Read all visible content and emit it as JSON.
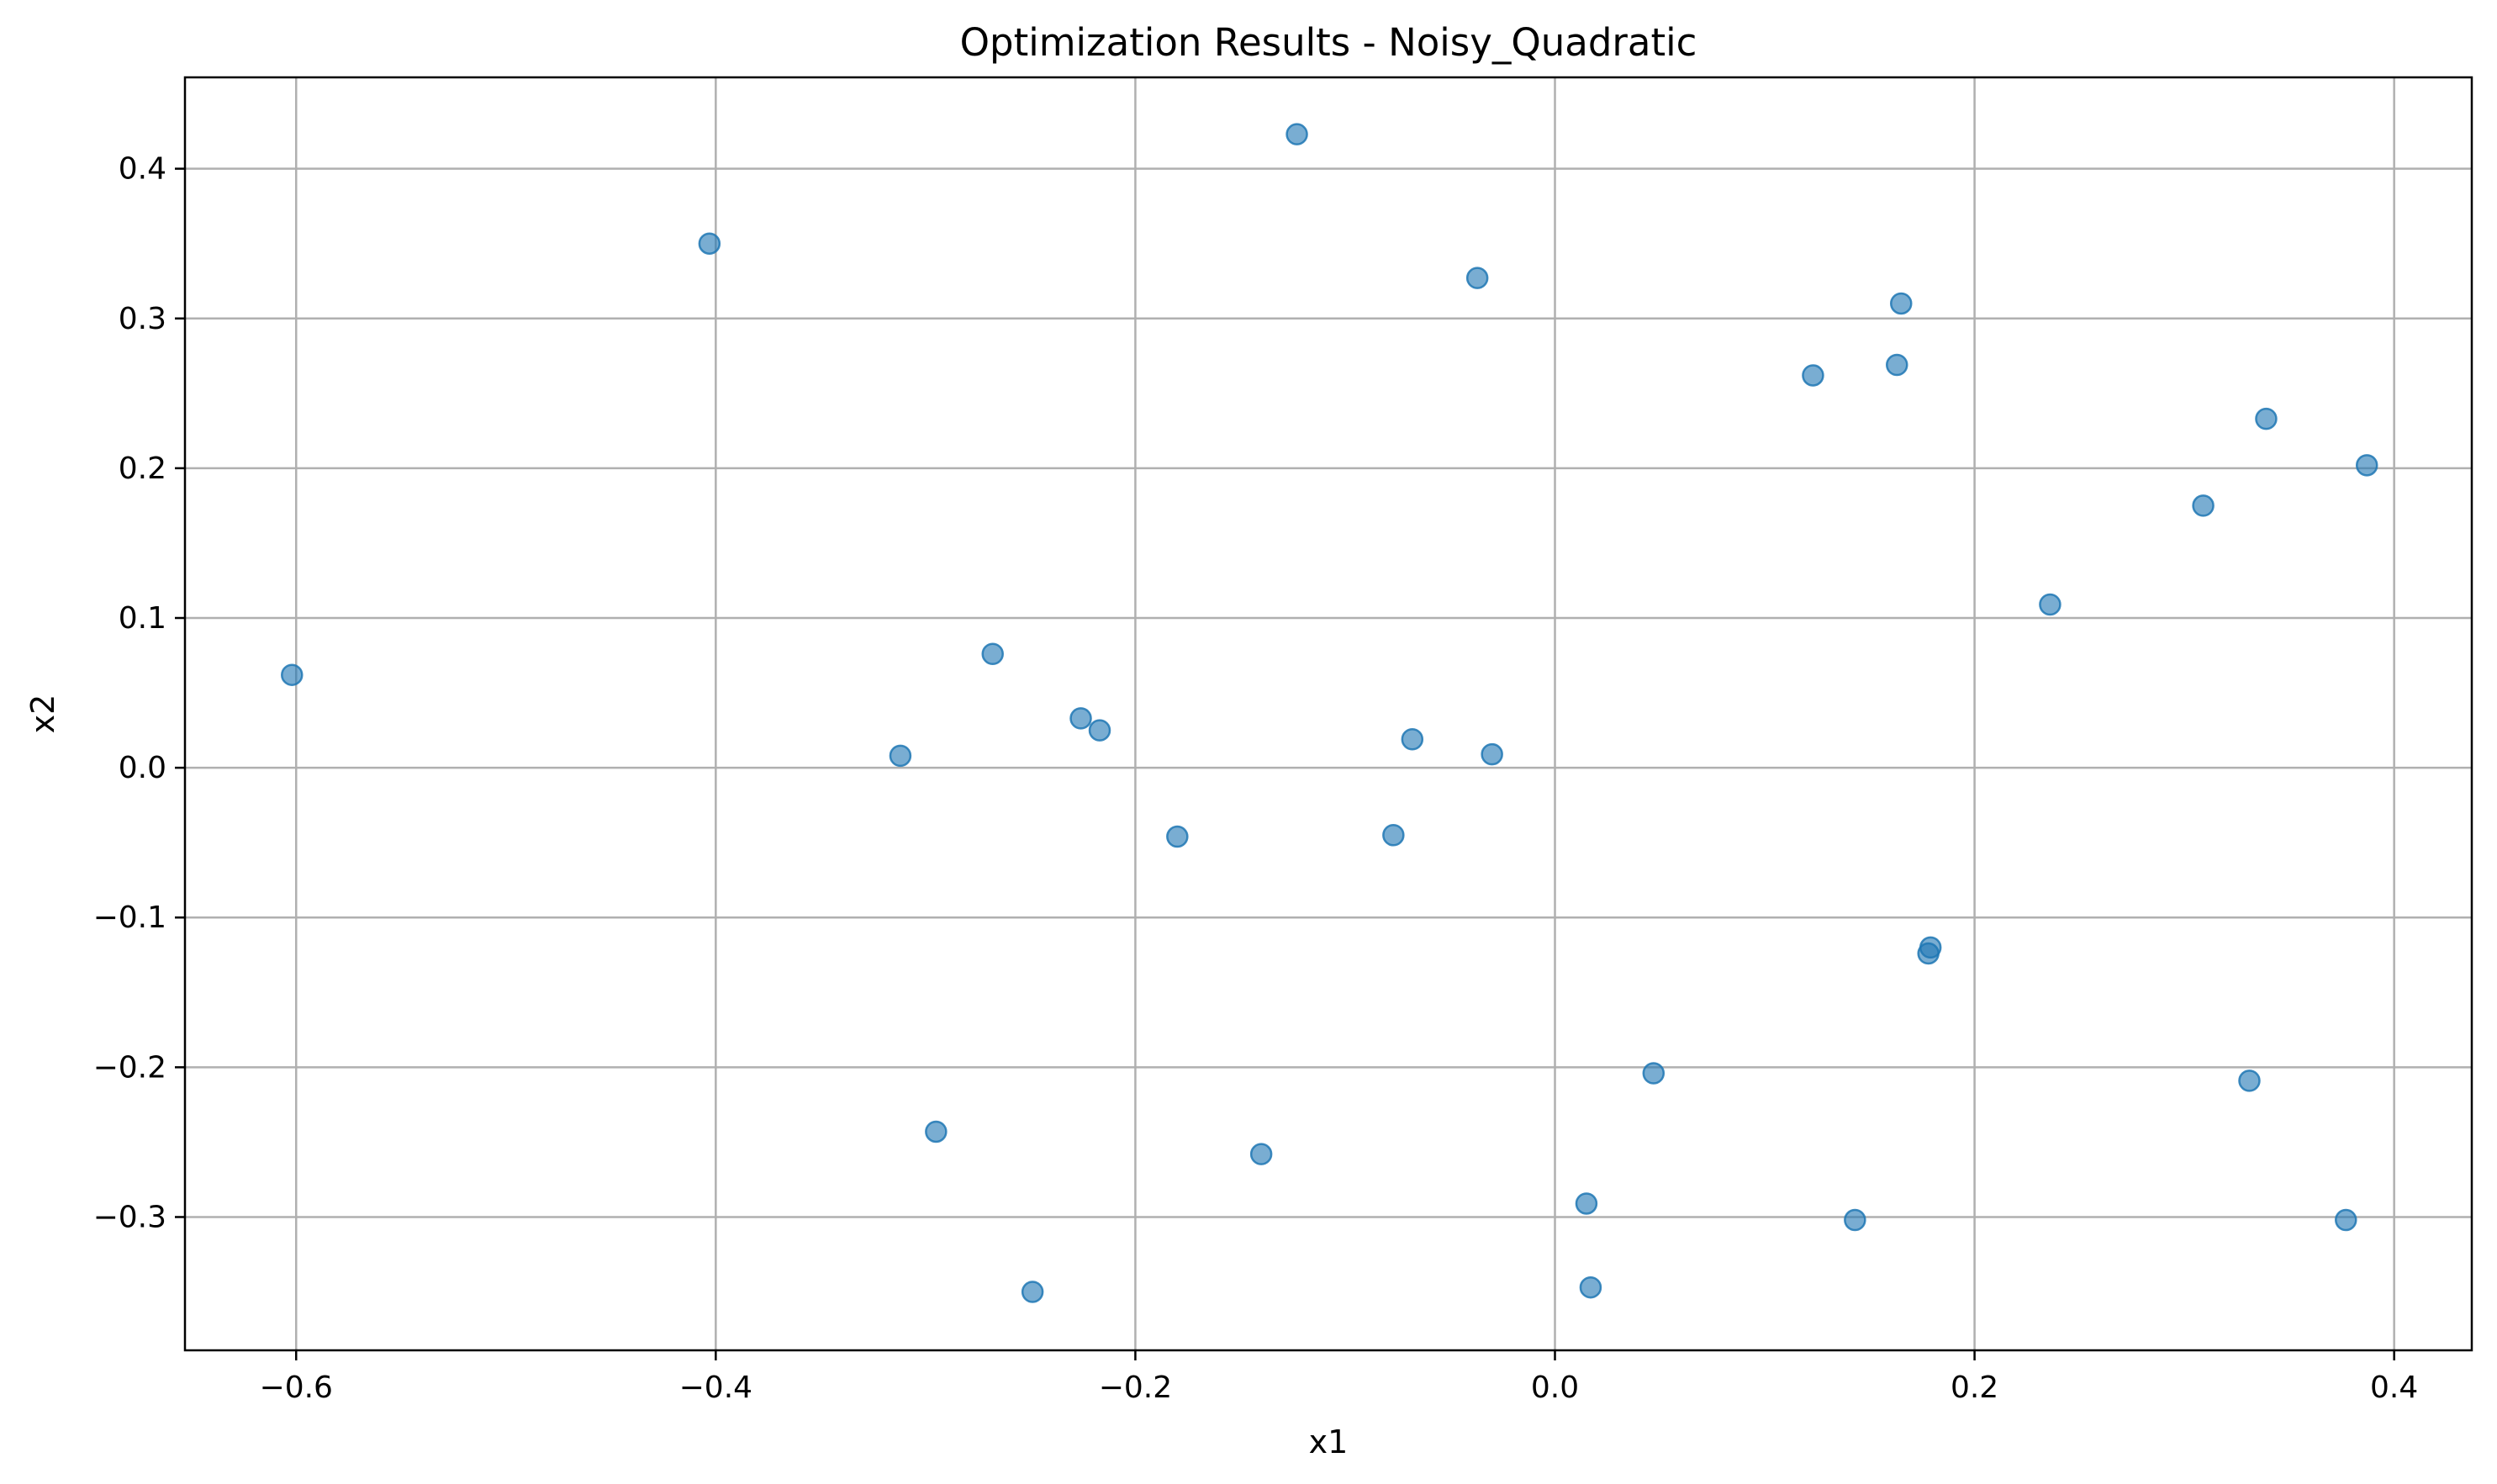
{
  "chart_data": {
    "type": "scatter",
    "title": "Optimization Results - Noisy_Quadratic",
    "xlabel": "x1",
    "ylabel": "x2",
    "xlim": [
      -0.653,
      0.437
    ],
    "ylim": [
      -0.389,
      0.461
    ],
    "x_ticks": [
      -0.6,
      -0.4,
      -0.2,
      0.0,
      0.2,
      0.4
    ],
    "x_tick_labels": [
      "−0.6",
      "−0.4",
      "−0.2",
      "0.0",
      "0.2",
      "0.4"
    ],
    "y_ticks": [
      -0.3,
      -0.2,
      -0.1,
      0.0,
      0.1,
      0.2,
      0.3,
      0.4
    ],
    "y_tick_labels": [
      "−0.3",
      "−0.2",
      "−0.1",
      "0.0",
      "0.1",
      "0.2",
      "0.3",
      "0.4"
    ],
    "grid": true,
    "marker_color": "#1f77b4",
    "marker_alpha": 0.6,
    "points": [
      {
        "x": -0.602,
        "y": 0.062
      },
      {
        "x": -0.403,
        "y": 0.35
      },
      {
        "x": -0.123,
        "y": 0.423
      },
      {
        "x": -0.037,
        "y": 0.327
      },
      {
        "x": 0.165,
        "y": 0.31
      },
      {
        "x": 0.123,
        "y": 0.262
      },
      {
        "x": 0.163,
        "y": 0.269
      },
      {
        "x": 0.339,
        "y": 0.233
      },
      {
        "x": 0.387,
        "y": 0.202
      },
      {
        "x": 0.309,
        "y": 0.175
      },
      {
        "x": 0.236,
        "y": 0.109
      },
      {
        "x": -0.268,
        "y": 0.076
      },
      {
        "x": -0.226,
        "y": 0.033
      },
      {
        "x": -0.217,
        "y": 0.025
      },
      {
        "x": -0.312,
        "y": 0.008
      },
      {
        "x": -0.068,
        "y": 0.019
      },
      {
        "x": -0.03,
        "y": 0.009
      },
      {
        "x": -0.18,
        "y": -0.046
      },
      {
        "x": -0.077,
        "y": -0.045
      },
      {
        "x": 0.179,
        "y": -0.12
      },
      {
        "x": 0.178,
        "y": -0.124
      },
      {
        "x": 0.047,
        "y": -0.204
      },
      {
        "x": 0.331,
        "y": -0.209
      },
      {
        "x": -0.295,
        "y": -0.243
      },
      {
        "x": -0.14,
        "y": -0.258
      },
      {
        "x": 0.015,
        "y": -0.291
      },
      {
        "x": 0.143,
        "y": -0.302
      },
      {
        "x": 0.377,
        "y": -0.302
      },
      {
        "x": -0.249,
        "y": -0.35
      },
      {
        "x": 0.017,
        "y": -0.347
      }
    ]
  }
}
